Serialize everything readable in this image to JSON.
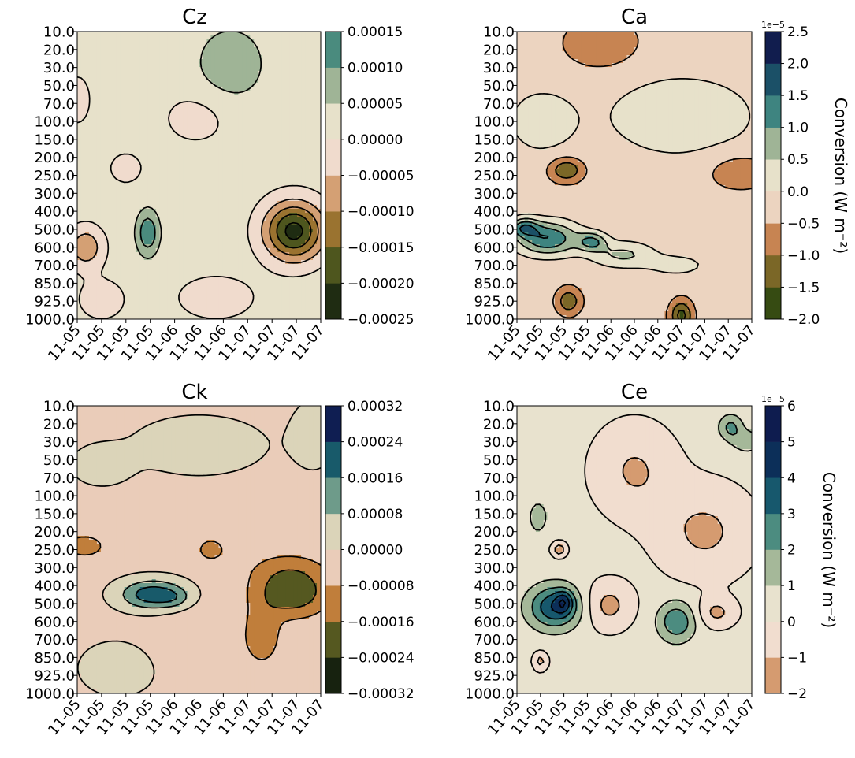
{
  "chart_data": [
    {
      "type": "heatmap",
      "title": "Cz",
      "x_tick_labels": [
        "11-05",
        "11-05",
        "11-05",
        "11-05",
        "11-06",
        "11-06",
        "11-06",
        "11-07",
        "11-07",
        "11-07",
        "11-07"
      ],
      "y_levels": [
        "10.0",
        "20.0",
        "30.0",
        "50.0",
        "70.0",
        "100.0",
        "150.0",
        "200.0",
        "250.0",
        "300.0",
        "400.0",
        "500.0",
        "600.0",
        "700.0",
        "850.0",
        "925.0",
        "1000.0"
      ],
      "colorbar": {
        "levels": [
          -0.00025,
          -0.0002,
          -0.00015,
          -0.0001,
          -5e-05,
          0,
          5e-05,
          0.0001,
          0.00015
        ],
        "tick_labels": [
          "−0.00025",
          "−0.00020",
          "−0.00015",
          "−0.00010",
          "−0.00005",
          "0.00000",
          "0.00005",
          "0.00010",
          "0.00015"
        ],
        "colors": [
          "#1f2c12",
          "#4e561e",
          "#9a7330",
          "#d4a074",
          "#f0dbcd",
          "#e7e1ca",
          "#9fb496",
          "#4a8b7e"
        ],
        "offset_label": "",
        "label": ""
      },
      "features": [
        {
          "x": 0.35,
          "y": 12.0,
          "amp": -0.00011,
          "sx": 0.7,
          "sy": 1.1
        },
        {
          "x": 8.9,
          "y": 11.1,
          "amp": -0.00024,
          "sx": 1.2,
          "sy": 1.6
        },
        {
          "x": 2.9,
          "y": 11.2,
          "amp": 0.000125,
          "sx": 0.45,
          "sy": 1.2
        },
        {
          "x": 2.0,
          "y": 7.6,
          "amp": -7e-05,
          "sx": 0.55,
          "sy": 0.7
        },
        {
          "x": 6.3,
          "y": 1.8,
          "amp": 6e-05,
          "sx": 1.5,
          "sy": 2.2
        },
        {
          "x": 4.9,
          "y": 4.8,
          "amp": -4e-05,
          "sx": 1.4,
          "sy": 1.5
        },
        {
          "x": 1.0,
          "y": 14.9,
          "amp": -4e-05,
          "sx": 1.1,
          "sy": 1.3
        },
        {
          "x": 5.7,
          "y": 14.8,
          "amp": -4.5e-05,
          "sx": 1.7,
          "sy": 1.3
        },
        {
          "x": 0.0,
          "y": 3.8,
          "amp": -3e-05,
          "sx": 0.8,
          "sy": 2.0
        }
      ],
      "base": 2e-05
    },
    {
      "type": "heatmap",
      "title": "Ca",
      "x_tick_labels": [
        "11-05",
        "11-05",
        "11-05",
        "11-05",
        "11-06",
        "11-06",
        "11-06",
        "11-07",
        "11-07",
        "11-07",
        "11-07"
      ],
      "y_levels": [
        "10.0",
        "20.0",
        "30.0",
        "50.0",
        "70.0",
        "100.0",
        "150.0",
        "200.0",
        "250.0",
        "300.0",
        "400.0",
        "500.0",
        "600.0",
        "700.0",
        "850.0",
        "925.0",
        "1000.0"
      ],
      "colorbar": {
        "levels": [
          -2.0,
          -1.5,
          -1.0,
          -0.5,
          0.0,
          0.5,
          1.0,
          1.5,
          2.0,
          2.5
        ],
        "tick_labels": [
          "−2.0",
          "−1.5",
          "−1.0",
          "−0.5",
          "0.0",
          "0.5",
          "1.0",
          "1.5",
          "2.0",
          "2.5"
        ],
        "colors": [
          "#364b12",
          "#7b6727",
          "#c78452",
          "#ecd4c0",
          "#e7e1ca",
          "#9fb496",
          "#3e8480",
          "#1b5067",
          "#111d4e"
        ],
        "offset_label": "1e−5",
        "label": "Conversion  (W m⁻²)"
      },
      "features": [
        {
          "x": 1.3,
          "y": 11.5,
          "amp": 1.8,
          "sx": 1.3,
          "sy": 0.9
        },
        {
          "x": 0.3,
          "y": 10.9,
          "amp": 1.4,
          "sx": 0.6,
          "sy": 0.5
        },
        {
          "x": 3.2,
          "y": 11.7,
          "amp": 1.3,
          "sx": 0.6,
          "sy": 0.5
        },
        {
          "x": 4.5,
          "y": 12.4,
          "amp": 0.9,
          "sx": 1.3,
          "sy": 0.7
        },
        {
          "x": 6.8,
          "y": 13.0,
          "amp": 0.5,
          "sx": 1.3,
          "sy": 0.6
        },
        {
          "x": 2.1,
          "y": 7.7,
          "amp": -1.2,
          "sx": 0.7,
          "sy": 0.65
        },
        {
          "x": 2.2,
          "y": 15.0,
          "amp": -1.1,
          "sx": 0.5,
          "sy": 0.7
        },
        {
          "x": 7.0,
          "y": 15.8,
          "amp": -1.4,
          "sx": 0.45,
          "sy": 0.8
        },
        {
          "x": 3.6,
          "y": 0.7,
          "amp": -0.6,
          "sx": 1.6,
          "sy": 1.4
        },
        {
          "x": 7.0,
          "y": 4.7,
          "amp": 0.6,
          "sx": 3.5,
          "sy": 2.5
        },
        {
          "x": 9.5,
          "y": 7.8,
          "amp": -0.6,
          "sx": 1.4,
          "sy": 1.0
        },
        {
          "x": 1.0,
          "y": 5.0,
          "amp": 0.5,
          "sx": 1.6,
          "sy": 2.0
        }
      ],
      "base": -0.3
    },
    {
      "type": "heatmap",
      "title": "Ck",
      "x_tick_labels": [
        "11-05",
        "11-05",
        "11-05",
        "11-05",
        "11-06",
        "11-06",
        "11-06",
        "11-07",
        "11-07",
        "11-07",
        "11-07"
      ],
      "y_levels": [
        "10.0",
        "20.0",
        "30.0",
        "50.0",
        "70.0",
        "100.0",
        "150.0",
        "200.0",
        "250.0",
        "300.0",
        "400.0",
        "500.0",
        "600.0",
        "700.0",
        "850.0",
        "925.0",
        "1000.0"
      ],
      "colorbar": {
        "levels": [
          -0.00032,
          -0.00024,
          -0.00016,
          -8e-05,
          0,
          8e-05,
          0.00016,
          0.00024,
          0.00032
        ],
        "tick_labels": [
          "−0.00032",
          "−0.00024",
          "−0.00016",
          "−0.00008",
          "0.00000",
          "0.00008",
          "0.00016",
          "0.00024",
          "0.00032"
        ],
        "colors": [
          "#17220f",
          "#555820",
          "#c07e3b",
          "#eaccb9",
          "#dbd4b9",
          "#6e9b8a",
          "#185a6a",
          "#0f1e52"
        ],
        "offset_label": "",
        "label": ""
      },
      "features": [
        {
          "x": 3.1,
          "y": 10.5,
          "amp": 0.00024,
          "sx": 1.3,
          "sy": 0.8
        },
        {
          "x": 4.0,
          "y": 10.7,
          "amp": 6e-05,
          "sx": 0.6,
          "sy": 0.5
        },
        {
          "x": 0.3,
          "y": 7.8,
          "amp": -0.00012,
          "sx": 0.8,
          "sy": 0.6
        },
        {
          "x": 5.5,
          "y": 8.0,
          "amp": -0.00011,
          "sx": 0.55,
          "sy": 0.6
        },
        {
          "x": 8.8,
          "y": 10.4,
          "amp": -0.00021,
          "sx": 1.5,
          "sy": 1.3
        },
        {
          "x": 8.6,
          "y": 9.0,
          "amp": -6e-05,
          "sx": 1.8,
          "sy": 1.0
        },
        {
          "x": 7.6,
          "y": 12.8,
          "amp": -0.00012,
          "sx": 0.7,
          "sy": 1.5
        },
        {
          "x": 5.0,
          "y": 2.2,
          "amp": 7e-05,
          "sx": 2.5,
          "sy": 1.5
        },
        {
          "x": 1.0,
          "y": 3.3,
          "amp": 6e-05,
          "sx": 1.2,
          "sy": 1.1
        },
        {
          "x": 1.7,
          "y": 14.6,
          "amp": 6e-05,
          "sx": 1.6,
          "sy": 1.5
        },
        {
          "x": 9.7,
          "y": 1.6,
          "amp": 5e-05,
          "sx": 1.0,
          "sy": 2.0
        },
        {
          "x": 5.0,
          "y": 13.0,
          "amp": -3e-05,
          "sx": 2.0,
          "sy": 2.0
        }
      ],
      "base": -2e-05
    },
    {
      "type": "heatmap",
      "title": "Ce",
      "x_tick_labels": [
        "11-05",
        "11-05",
        "11-05",
        "11-05",
        "11-06",
        "11-06",
        "11-06",
        "11-07",
        "11-07",
        "11-07",
        "11-07"
      ],
      "y_levels": [
        "10.0",
        "20.0",
        "30.0",
        "50.0",
        "70.0",
        "100.0",
        "150.0",
        "200.0",
        "250.0",
        "300.0",
        "400.0",
        "500.0",
        "600.0",
        "700.0",
        "850.0",
        "925.0",
        "1000.0"
      ],
      "colorbar": {
        "levels": [
          -2,
          -1,
          0,
          1,
          2,
          3,
          4,
          5,
          6
        ],
        "tick_labels": [
          "−2",
          "−1",
          "0",
          "1",
          "2",
          "3",
          "4",
          "5",
          "6"
        ],
        "colors": [
          "#d59b70",
          "#f1ddcf",
          "#e8e2ce",
          "#a5b899",
          "#4c8c80",
          "#17586d",
          "#0c2f59",
          "#0e1c4f"
        ],
        "offset_label": "1e−5",
        "label": "Conversion  (W m⁻²)"
      },
      "features": [
        {
          "x": 1.6,
          "y": 11.2,
          "amp": 3.6,
          "sx": 1.1,
          "sy": 1.2
        },
        {
          "x": 2.0,
          "y": 10.9,
          "amp": 2.0,
          "sx": 0.35,
          "sy": 0.6
        },
        {
          "x": 6.8,
          "y": 12.0,
          "amp": 2.6,
          "sx": 0.8,
          "sy": 1.1
        },
        {
          "x": 0.9,
          "y": 6.2,
          "amp": 1.6,
          "sx": 0.35,
          "sy": 0.8
        },
        {
          "x": 9.1,
          "y": 1.2,
          "amp": 2.0,
          "sx": 0.5,
          "sy": 0.7
        },
        {
          "x": 9.8,
          "y": 2.0,
          "amp": 1.5,
          "sx": 0.6,
          "sy": 0.6
        },
        {
          "x": 3.9,
          "y": 11.1,
          "amp": -1.6,
          "sx": 1.0,
          "sy": 1.3
        },
        {
          "x": 5.0,
          "y": 3.6,
          "amp": -1.4,
          "sx": 1.7,
          "sy": 2.5
        },
        {
          "x": 8.0,
          "y": 7.0,
          "amp": -1.5,
          "sx": 2.0,
          "sy": 2.5
        },
        {
          "x": 1.8,
          "y": 8.0,
          "amp": -2.0,
          "sx": 0.3,
          "sy": 0.4
        },
        {
          "x": 1.0,
          "y": 14.2,
          "amp": -1.6,
          "sx": 0.3,
          "sy": 0.5
        },
        {
          "x": 0.5,
          "y": 2.5,
          "amp": 0.7,
          "sx": 1.0,
          "sy": 1.5
        },
        {
          "x": 8.5,
          "y": 11.5,
          "amp": -1.5,
          "sx": 0.8,
          "sy": 0.8
        },
        {
          "x": 5.5,
          "y": 15.5,
          "amp": 0.6,
          "sx": 2.0,
          "sy": 1.2
        }
      ],
      "base": 0.3
    }
  ]
}
